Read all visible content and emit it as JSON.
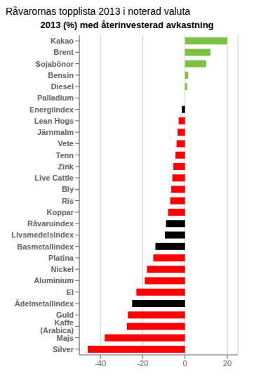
{
  "chart_data": {
    "type": "bar",
    "orientation": "horizontal",
    "title": "Råvarornas topplista 2013 i noterad valuta",
    "subtitle": "2013 (%) med återinvesterad avkastning",
    "categories": [
      "Kakao",
      "Brent",
      "Sojabönor",
      "Bensin",
      "Diesel",
      "Palladium",
      "Energiindex",
      "Lean Hogs",
      "Järnmalm",
      "Vete",
      "Tenn",
      "Zink",
      "Live Cattle",
      "Bly",
      "Ris",
      "Koppar",
      "Råvaruindex",
      "Livsmedelsindex",
      "Basmetallindex",
      "Platina",
      "Nickel",
      "Aluminium",
      "El",
      "Ädelmetallindex",
      "Guld",
      "Kaffe (Arabica)",
      "Majs",
      "Silver"
    ],
    "values": [
      20,
      12,
      10,
      1.5,
      1.0,
      0.0,
      -1.5,
      -3,
      -3.5,
      -4,
      -4.5,
      -5.5,
      -6,
      -6.5,
      -7,
      -8,
      -9,
      -9.5,
      -14,
      -15,
      -18,
      -19,
      -23,
      -25,
      -27,
      -27.5,
      -38,
      -46
    ],
    "colors": [
      "#7dc143",
      "#7dc143",
      "#7dc143",
      "#7dc143",
      "#7dc143",
      "#ff0000",
      "#000000",
      "#ff0000",
      "#ff0000",
      "#ff0000",
      "#ff0000",
      "#ff0000",
      "#ff0000",
      "#ff0000",
      "#ff0000",
      "#ff0000",
      "#000000",
      "#000000",
      "#000000",
      "#ff0000",
      "#ff0000",
      "#ff0000",
      "#ff0000",
      "#000000",
      "#ff0000",
      "#ff0000",
      "#ff0000",
      "#ff0000"
    ],
    "xlim": [
      -50,
      25
    ],
    "xticks": [
      -40,
      -20,
      0,
      20
    ],
    "grid": true
  }
}
